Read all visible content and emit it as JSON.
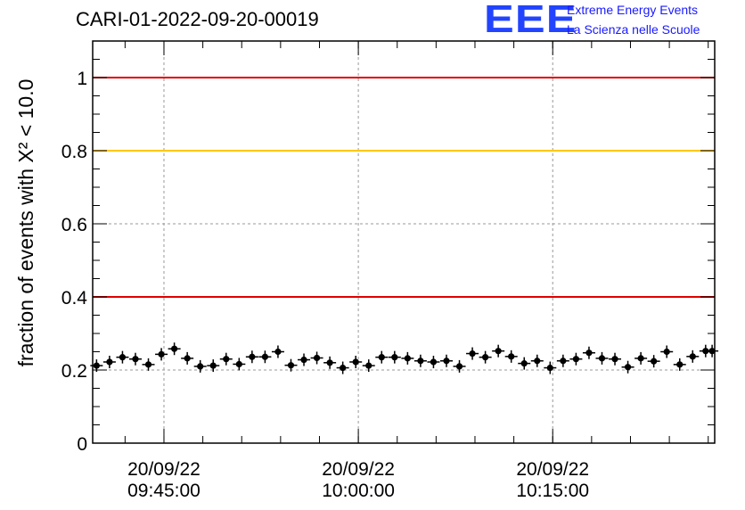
{
  "title": "CARI-01-2022-09-20-00019",
  "logo": {
    "mark": "EEE",
    "line1": "Extreme Energy Events",
    "line2": "La Scienza nelle Scuole"
  },
  "colors": {
    "red_line": "#e00000",
    "yellow_line": "#ffc800",
    "points": "#000000",
    "grid": "#999999",
    "logo": "#2244ff"
  },
  "chart_data": {
    "type": "scatter",
    "ylabel": "fraction of events with X² < 10.0",
    "ylim": [
      0,
      1.1
    ],
    "yticks": [
      0,
      0.2,
      0.4,
      0.6,
      0.8,
      1
    ],
    "ytick_labels": [
      "0",
      "0.2",
      "0.4",
      "0.6",
      "0.8",
      "1"
    ],
    "xlim": [
      "09:39:30",
      "10:27:30"
    ],
    "xticks": [
      {
        "time": "09:45:00",
        "label_date": "20/09/22",
        "label_time": "09:45:00"
      },
      {
        "time": "10:00:00",
        "label_date": "20/09/22",
        "label_time": "10:00:00"
      },
      {
        "time": "10:15:00",
        "label_date": "20/09/22",
        "label_time": "10:15:00"
      }
    ],
    "grid": true,
    "reference_lines": [
      {
        "y": 1.0,
        "color": "#e00000"
      },
      {
        "y": 0.8,
        "color": "#ffc800"
      },
      {
        "y": 0.4,
        "color": "#e00000"
      }
    ],
    "x": [
      "09:39:48",
      "09:40:48",
      "09:41:48",
      "09:42:48",
      "09:43:48",
      "09:44:48",
      "09:45:48",
      "09:46:48",
      "09:47:48",
      "09:48:48",
      "09:49:48",
      "09:50:48",
      "09:51:48",
      "09:52:48",
      "09:53:48",
      "09:54:48",
      "09:55:48",
      "09:56:48",
      "09:57:48",
      "09:58:48",
      "09:59:48",
      "10:00:48",
      "10:01:48",
      "10:02:48",
      "10:03:48",
      "10:04:48",
      "10:05:48",
      "10:06:48",
      "10:07:48",
      "10:08:48",
      "10:09:48",
      "10:10:48",
      "10:11:48",
      "10:12:48",
      "10:13:48",
      "10:14:48",
      "10:15:48",
      "10:16:48",
      "10:17:48",
      "10:18:48",
      "10:19:48",
      "10:20:48",
      "10:21:48",
      "10:22:48",
      "10:23:48",
      "10:24:48",
      "10:25:48",
      "10:26:48",
      "10:27:18"
    ],
    "y": [
      0.212,
      0.222,
      0.235,
      0.23,
      0.215,
      0.243,
      0.258,
      0.232,
      0.21,
      0.212,
      0.23,
      0.216,
      0.236,
      0.236,
      0.25,
      0.213,
      0.228,
      0.233,
      0.22,
      0.206,
      0.222,
      0.212,
      0.235,
      0.235,
      0.232,
      0.225,
      0.222,
      0.225,
      0.21,
      0.245,
      0.235,
      0.252,
      0.237,
      0.218,
      0.225,
      0.206,
      0.225,
      0.23,
      0.247,
      0.232,
      0.23,
      0.208,
      0.232,
      0.224,
      0.25,
      0.215,
      0.237,
      0.252,
      0.252
    ]
  }
}
